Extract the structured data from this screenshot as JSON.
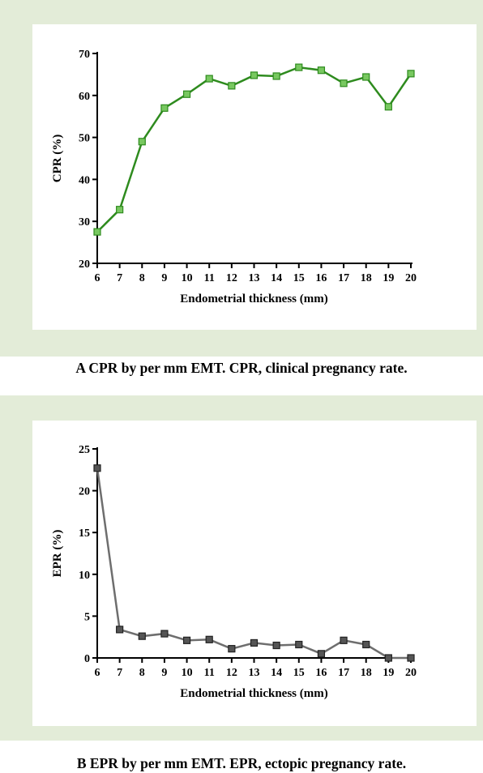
{
  "chart_data": [
    {
      "type": "line",
      "xlabel": "Endometrial thickness (mm)",
      "ylabel": "CPR (%)",
      "ylim": [
        20,
        70
      ],
      "yticks": [
        20,
        30,
        40,
        50,
        60,
        70
      ],
      "x": [
        6,
        7,
        8,
        9,
        10,
        11,
        12,
        13,
        14,
        15,
        16,
        17,
        18,
        19,
        20
      ],
      "values": [
        27.5,
        32.8,
        49.0,
        57.0,
        60.3,
        64.0,
        62.3,
        64.8,
        64.6,
        66.7,
        66.0,
        62.9,
        64.4,
        57.3,
        65.2
      ],
      "line_color": "#2e8b1e",
      "marker_color": "#78c860",
      "marker_edge": "#2e8b1e",
      "caption": "A CPR by per mm EMT. CPR, clinical pregnancy rate."
    },
    {
      "type": "line",
      "xlabel": "Endometrial thickness (mm)",
      "ylabel": "EPR (%)",
      "ylim": [
        0,
        25
      ],
      "yticks": [
        0,
        5,
        10,
        15,
        20,
        25
      ],
      "x": [
        6,
        7,
        8,
        9,
        10,
        11,
        12,
        13,
        14,
        15,
        16,
        17,
        18,
        19,
        20
      ],
      "values": [
        22.7,
        3.4,
        2.6,
        2.9,
        2.1,
        2.2,
        1.1,
        1.8,
        1.5,
        1.6,
        0.5,
        2.1,
        1.6,
        0.0,
        0.0
      ],
      "line_color": "#6e6e6e",
      "marker_color": "#555555",
      "marker_edge": "#222222",
      "caption": "B EPR by per mm EMT. EPR, ectopic pregnancy rate."
    }
  ]
}
